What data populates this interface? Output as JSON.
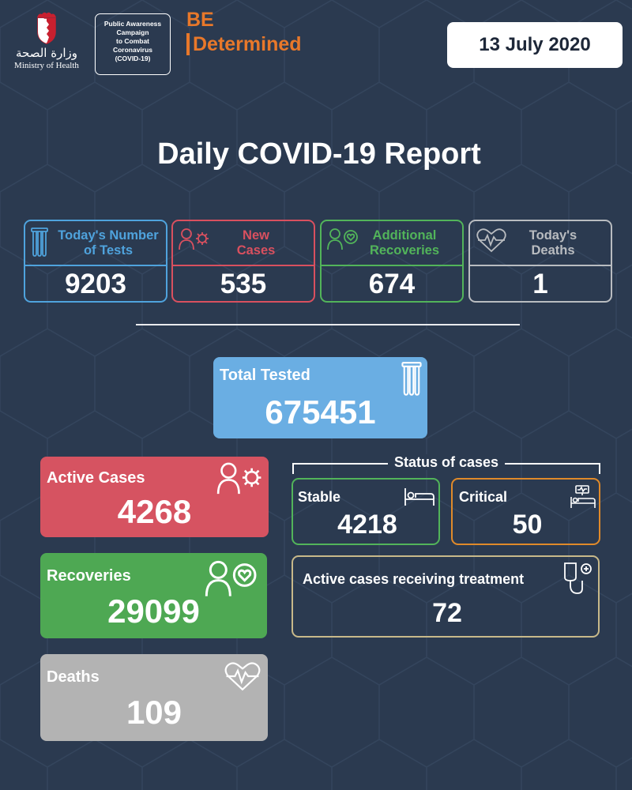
{
  "header": {
    "ministry_arabic": "وزارة الصحة",
    "ministry_english": "Ministry of Health",
    "campaign_lines": [
      "Public Awareness",
      "Campaign",
      "to Combat",
      "Coronavirus",
      "(COVID-19)"
    ],
    "be_top": "BE",
    "be_bottom": "Determined",
    "date": "13 July 2020"
  },
  "title": "Daily COVID-19 Report",
  "daily": {
    "tests": {
      "label_line1": "Today's Number",
      "label_line2": "of Tests",
      "value": "9203",
      "color": "#4fa3dd",
      "icon": "test-tubes-icon"
    },
    "new_cases": {
      "label_line1": "New",
      "label_line2": "Cases",
      "value": "535",
      "color": "#d9505f",
      "icon": "person-virus-icon"
    },
    "recoveries": {
      "label_line1": "Additional",
      "label_line2": "Recoveries",
      "value": "674",
      "color": "#52b45a",
      "icon": "person-heart-icon"
    },
    "deaths": {
      "label_line1": "Today's",
      "label_line2": "Deaths",
      "value": "1",
      "color": "#b9bcc0",
      "icon": "heartbeat-icon"
    }
  },
  "totals": {
    "total_tested": {
      "label": "Total Tested",
      "value": "675451",
      "color": "#6aaee3"
    },
    "active_cases": {
      "label": "Active Cases",
      "value": "4268",
      "color": "#d65361"
    },
    "recoveries": {
      "label": "Recoveries",
      "value": "29099",
      "color": "#4ea853"
    },
    "deaths": {
      "label": "Deaths",
      "value": "109",
      "color": "#b3b3b3"
    }
  },
  "status": {
    "heading": "Status of cases",
    "stable": {
      "label": "Stable",
      "value": "4218",
      "color": "#52b45a"
    },
    "critical": {
      "label": "Critical",
      "value": "50",
      "color": "#e08a2a"
    },
    "treatment": {
      "label": "Active cases receiving treatment",
      "value": "72",
      "color": "#c8b98a"
    }
  }
}
